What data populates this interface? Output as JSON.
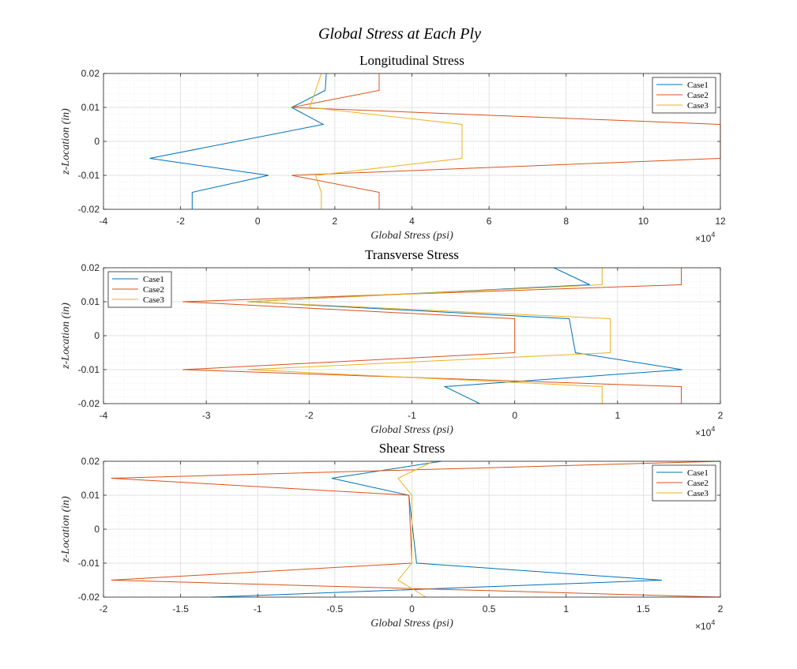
{
  "figure": {
    "title": "Global Stress at Each Ply"
  },
  "chart_data": [
    {
      "type": "line",
      "title": "Longitudinal Stress",
      "xlabel": "Global Stress (psi)",
      "ylabel": "z-Location (in)",
      "x_multiplier_base": "10",
      "x_multiplier_exp": "4",
      "xlim": [
        -40000,
        120000
      ],
      "ylim": [
        -0.02,
        0.02
      ],
      "xticks": [
        -40000,
        -20000,
        0,
        20000,
        40000,
        60000,
        80000,
        100000,
        120000
      ],
      "xtick_labels": [
        "-4",
        "-2",
        "0",
        "2",
        "4",
        "6",
        "8",
        "10",
        "12"
      ],
      "yticks": [
        0.02,
        0.01,
        0,
        -0.01,
        -0.02
      ],
      "ytick_labels": [
        "0.02",
        "0.01",
        "0",
        "-0.01",
        "-0.02"
      ],
      "grid": true,
      "legend_position": "top-right",
      "series": [
        {
          "name": "Case1",
          "color": "#0072BD",
          "x": [
            17800,
            17500,
            8800,
            17000,
            -28000,
            2800,
            -17000,
            -17000
          ],
          "y": [
            0.02,
            0.015,
            0.01,
            0.005,
            -0.005,
            -0.01,
            -0.015,
            -0.02
          ]
        },
        {
          "name": "Case2",
          "color": "#D95319",
          "x": [
            31500,
            31500,
            8800,
            120000,
            120000,
            8800,
            31500,
            31500
          ],
          "y": [
            0.02,
            0.015,
            0.01,
            0.005,
            -0.005,
            -0.01,
            -0.015,
            -0.02
          ]
        },
        {
          "name": "Case3",
          "color": "#EDB120",
          "x": [
            16500,
            15000,
            13500,
            53000,
            53000,
            15000,
            16500,
            16500
          ],
          "y": [
            0.02,
            0.015,
            0.01,
            0.005,
            -0.005,
            -0.01,
            -0.015,
            -0.02
          ]
        }
      ]
    },
    {
      "type": "line",
      "title": "Transverse Stress",
      "xlabel": "Global Stress (psi)",
      "ylabel": "z-Location (in)",
      "x_multiplier_base": "10",
      "x_multiplier_exp": "4",
      "xlim": [
        -40000,
        20000
      ],
      "ylim": [
        -0.02,
        0.02
      ],
      "xticks": [
        -40000,
        -30000,
        -20000,
        -10000,
        0,
        10000,
        20000
      ],
      "xtick_labels": [
        "-4",
        "-3",
        "-2",
        "-1",
        "0",
        "1",
        "2"
      ],
      "yticks": [
        0.02,
        0.01,
        0,
        -0.01,
        -0.02
      ],
      "ytick_labels": [
        "0.02",
        "0.01",
        "0",
        "-0.01",
        "-0.02"
      ],
      "grid": true,
      "legend_position": "top-left",
      "series": [
        {
          "name": "Case1",
          "color": "#0072BD",
          "x": [
            3800,
            7300,
            -26000,
            5300,
            5900,
            16300,
            -6800,
            -3400
          ],
          "y": [
            0.02,
            0.015,
            0.01,
            0.005,
            -0.005,
            -0.01,
            -0.015,
            -0.02
          ]
        },
        {
          "name": "Case2",
          "color": "#D95319",
          "x": [
            16200,
            16200,
            -32300,
            0,
            0,
            -32300,
            16200,
            16200
          ],
          "y": [
            0.02,
            0.015,
            0.01,
            0.005,
            -0.005,
            -0.01,
            -0.015,
            -0.02
          ]
        },
        {
          "name": "Case3",
          "color": "#EDB120",
          "x": [
            8500,
            8500,
            -26000,
            9300,
            9300,
            -26000,
            8500,
            8500
          ],
          "y": [
            0.02,
            0.015,
            0.01,
            0.005,
            -0.005,
            -0.01,
            -0.015,
            -0.02
          ]
        }
      ]
    },
    {
      "type": "line",
      "title": "Shear Stress",
      "xlabel": "Global Stress (psi)",
      "ylabel": "z-Location (in)",
      "x_multiplier_base": "10",
      "x_multiplier_exp": "4",
      "xlim": [
        -20000,
        20000
      ],
      "ylim": [
        -0.02,
        0.02
      ],
      "xticks": [
        -20000,
        -15000,
        -10000,
        -5000,
        0,
        5000,
        10000,
        15000,
        20000
      ],
      "xtick_labels": [
        "-2",
        "-1.5",
        "-1",
        "-0.5",
        "0",
        "0.5",
        "1",
        "1.5",
        "2"
      ],
      "yticks": [
        0.02,
        0.01,
        0,
        -0.01,
        -0.02
      ],
      "ytick_labels": [
        "0.02",
        "0.01",
        "0",
        "-0.01",
        "-0.02"
      ],
      "grid": true,
      "legend_position": "top-right",
      "series": [
        {
          "name": "Case1",
          "color": "#0072BD",
          "x": [
            1900,
            -5200,
            -200,
            300,
            16200,
            -13000
          ],
          "y": [
            0.02,
            0.015,
            0.01,
            -0.01,
            -0.015,
            -0.02
          ]
        },
        {
          "name": "Case2",
          "color": "#D95319",
          "x": [
            20000,
            -19500,
            -200,
            0,
            -19500,
            20000
          ],
          "y": [
            0.02,
            0.015,
            0.01,
            -0.01,
            -0.015,
            -0.02
          ]
        },
        {
          "name": "Case3",
          "color": "#EDB120",
          "x": [
            1400,
            -900,
            0,
            0,
            -900,
            900
          ],
          "y": [
            0.02,
            0.015,
            0.01,
            -0.01,
            -0.015,
            -0.02
          ]
        }
      ]
    }
  ]
}
